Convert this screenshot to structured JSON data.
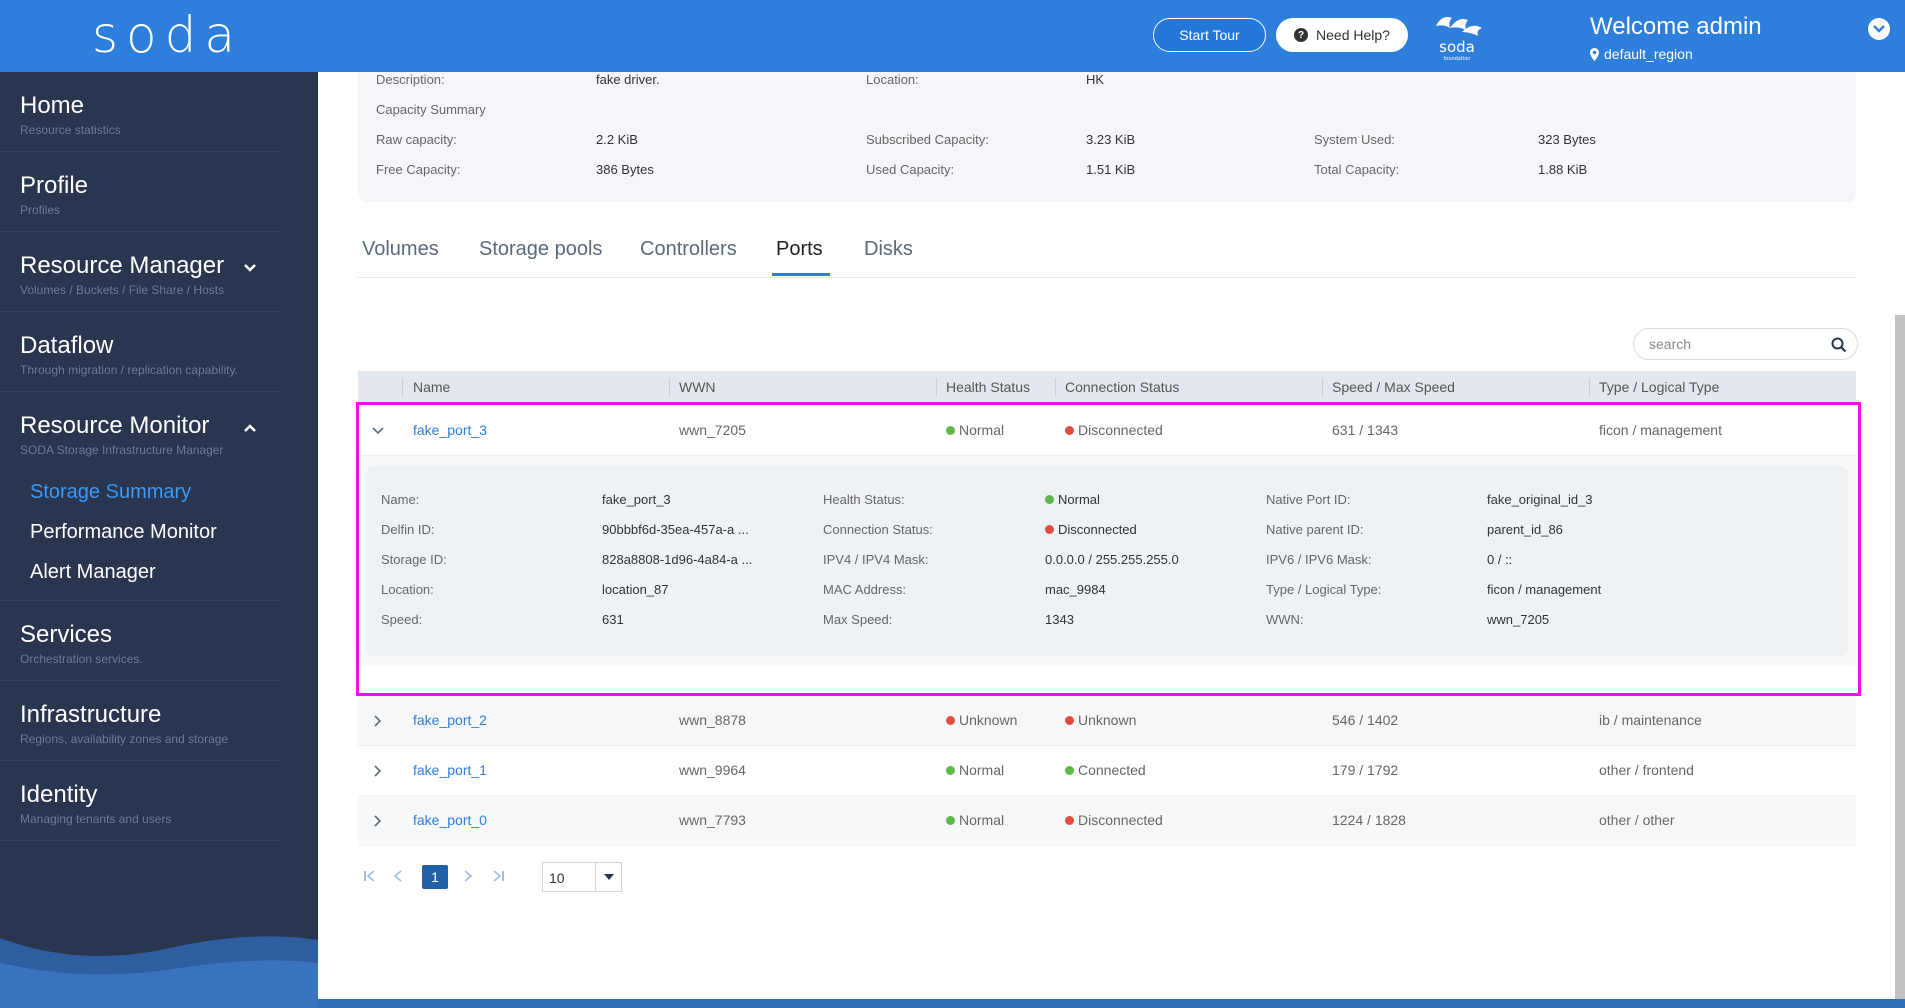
{
  "header": {
    "logo": "soda",
    "start_tour": "Start Tour",
    "need_help": "Need Help?",
    "welcome": "Welcome admin",
    "region": "default_region"
  },
  "sidebar": {
    "items": [
      {
        "title": "Home",
        "sub": "Resource statistics"
      },
      {
        "title": "Profile",
        "sub": "Profiles"
      },
      {
        "title": "Resource Manager",
        "sub": "Volumes / Buckets / File Share / Hosts"
      },
      {
        "title": "Dataflow",
        "sub": "Through migration / replication capability."
      },
      {
        "title": "Resource Monitor",
        "sub": "SODA Storage Infrastructure Manager"
      },
      {
        "title": "Services",
        "sub": "Orchestration services."
      },
      {
        "title": "Infrastructure",
        "sub": "Regions, availability zones and storage"
      },
      {
        "title": "Identity",
        "sub": "Managing tenants and users"
      }
    ],
    "monitor_sub": [
      "Storage Summary",
      "Performance Monitor",
      "Alert Manager"
    ]
  },
  "summary": {
    "description_label": "Description:",
    "description_value": "fake driver.",
    "location_label": "Location:",
    "location_value": "HK",
    "capacity_heading": "Capacity Summary",
    "raw_label": "Raw capacity:",
    "raw_value": "2.2 KiB",
    "subscribed_label": "Subscribed Capacity:",
    "subscribed_value": "3.23 KiB",
    "system_label": "System Used:",
    "system_value": "323 Bytes",
    "free_label": "Free Capacity:",
    "free_value": "386 Bytes",
    "used_label": "Used Capacity:",
    "used_value": "1.51 KiB",
    "total_label": "Total Capacity:",
    "total_value": "1.88 KiB"
  },
  "tabs": [
    "Volumes",
    "Storage pools",
    "Controllers",
    "Ports",
    "Disks"
  ],
  "search": {
    "placeholder": "search"
  },
  "table": {
    "headers": [
      "Name",
      "WWN",
      "Health Status",
      "Connection Status",
      "Speed / Max Speed",
      "Type / Logical Type"
    ],
    "rows": [
      {
        "name": "fake_port_3",
        "wwn": "wwn_7205",
        "health": "Normal",
        "health_color": "#5db848",
        "conn": "Disconnected",
        "conn_color": "#e54b3c",
        "speed": "631 / 1343",
        "type": "ficon / management"
      },
      {
        "name": "fake_port_2",
        "wwn": "wwn_8878",
        "health": "Unknown",
        "health_color": "#e54b3c",
        "conn": "Unknown",
        "conn_color": "#e54b3c",
        "speed": "546 / 1402",
        "type": "ib / maintenance"
      },
      {
        "name": "fake_port_1",
        "wwn": "wwn_9964",
        "health": "Normal",
        "health_color": "#5db848",
        "conn": "Connected",
        "conn_color": "#5db848",
        "speed": "179 / 1792",
        "type": "other / frontend"
      },
      {
        "name": "fake_port_0",
        "wwn": "wwn_7793",
        "health": "Normal",
        "health_color": "#5db848",
        "conn": "Disconnected",
        "conn_color": "#e54b3c",
        "speed": "1224 / 1828",
        "type": "other / other"
      }
    ]
  },
  "details": {
    "col1": [
      {
        "label": "Name:",
        "value": "fake_port_3"
      },
      {
        "label": "Delfin ID:",
        "value": "90bbbf6d-35ea-457a-a ..."
      },
      {
        "label": "Storage ID:",
        "value": "828a8808-1d96-4a84-a ..."
      },
      {
        "label": "Location:",
        "value": "location_87"
      },
      {
        "label": "Speed:",
        "value": "631"
      }
    ],
    "col2": [
      {
        "label": "Health Status:",
        "value": "Normal"
      },
      {
        "label": "Connection Status:",
        "value": "Disconnected"
      },
      {
        "label": "IPV4 / IPV4 Mask:",
        "value": "0.0.0.0 / 255.255.255.0"
      },
      {
        "label": "MAC Address:",
        "value": "mac_9984"
      },
      {
        "label": "Max Speed:",
        "value": "1343"
      }
    ],
    "col3": [
      {
        "label": "Native Port ID:",
        "value": "fake_original_id_3"
      },
      {
        "label": "Native parent ID:",
        "value": "parent_id_86"
      },
      {
        "label": "IPV6 / IPV6 Mask:",
        "value": "0 / ::"
      },
      {
        "label": "Type / Logical Type:",
        "value": "ficon / management"
      },
      {
        "label": "WWN:",
        "value": "wwn_7205"
      }
    ]
  },
  "pager": {
    "current": "1",
    "size": "10"
  },
  "colors": {
    "accent": "#2e7fdc",
    "sidebar": "#2a3550",
    "highlight": "#f012e0",
    "ok": "#5db848",
    "error": "#e54b3c"
  }
}
